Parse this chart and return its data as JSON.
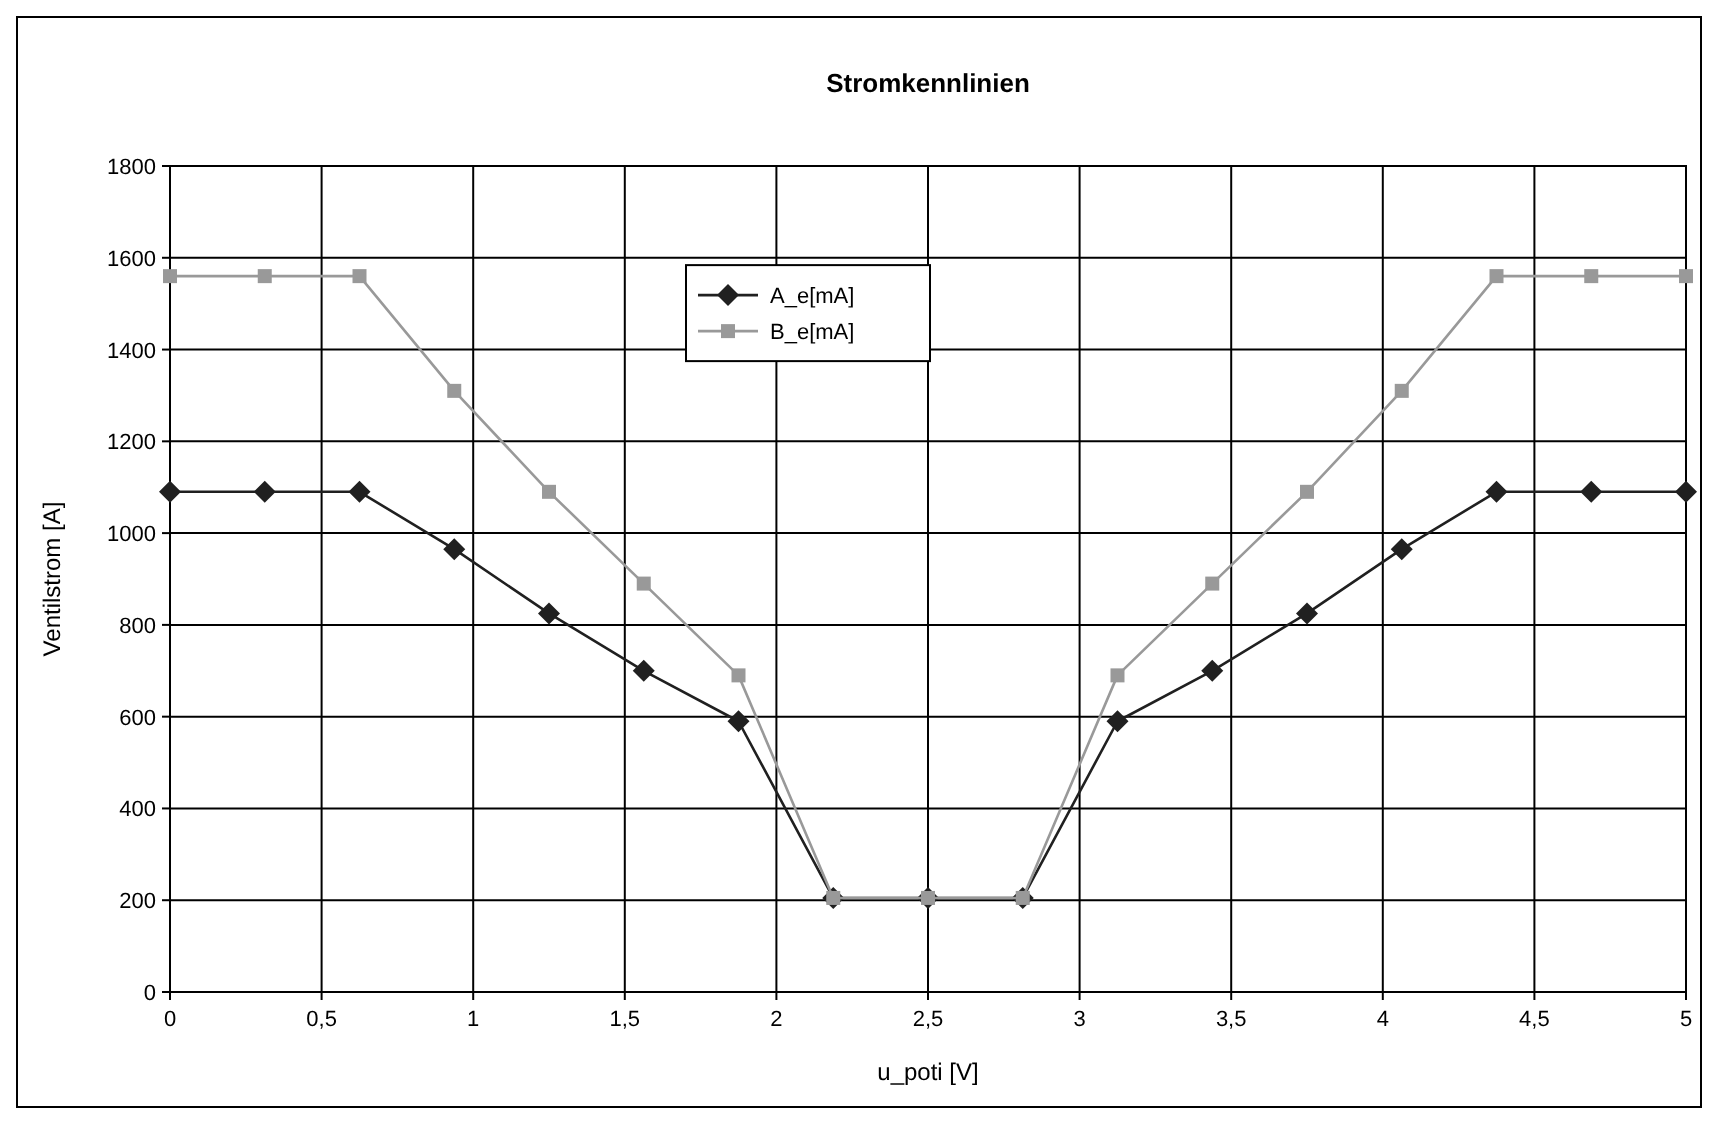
{
  "chart_data": {
    "type": "line",
    "title": "Stromkennlinien",
    "xlabel": "u_poti [V]",
    "ylabel": "Ventilstrom [A]",
    "x": [
      0,
      0.3125,
      0.625,
      0.9375,
      1.25,
      1.5625,
      1.875,
      2.1875,
      2.5,
      2.8125,
      3.125,
      3.4375,
      3.75,
      4.0625,
      4.375,
      4.6875,
      5
    ],
    "series": [
      {
        "name": "A_e[mA]",
        "color": "#202020",
        "marker": "diamond",
        "values": [
          1090,
          1090,
          1090,
          965,
          825,
          700,
          590,
          205,
          205,
          205,
          590,
          700,
          825,
          965,
          1090,
          1090,
          1090
        ]
      },
      {
        "name": "B_e[mA]",
        "color": "#999999",
        "marker": "square",
        "values": [
          1560,
          1560,
          1560,
          1310,
          1090,
          890,
          690,
          205,
          205,
          205,
          690,
          890,
          1090,
          1310,
          1560,
          1560,
          1560
        ]
      }
    ],
    "xlim": [
      0,
      5
    ],
    "xticks": [
      0,
      {
        "value": 0.5,
        "label": "0,5"
      },
      1,
      {
        "value": 1.5,
        "label": "1,5"
      },
      2,
      {
        "value": 2.5,
        "label": "2,5"
      },
      3,
      {
        "value": 3.5,
        "label": "3,5"
      },
      4,
      {
        "value": 4.5,
        "label": "4,5"
      },
      5
    ],
    "ylim": [
      0,
      1800
    ],
    "yticks": [
      0,
      200,
      400,
      600,
      800,
      1000,
      1200,
      1400,
      1600,
      1800
    ],
    "grid": true,
    "legend": "top",
    "line_style": "solid"
  }
}
